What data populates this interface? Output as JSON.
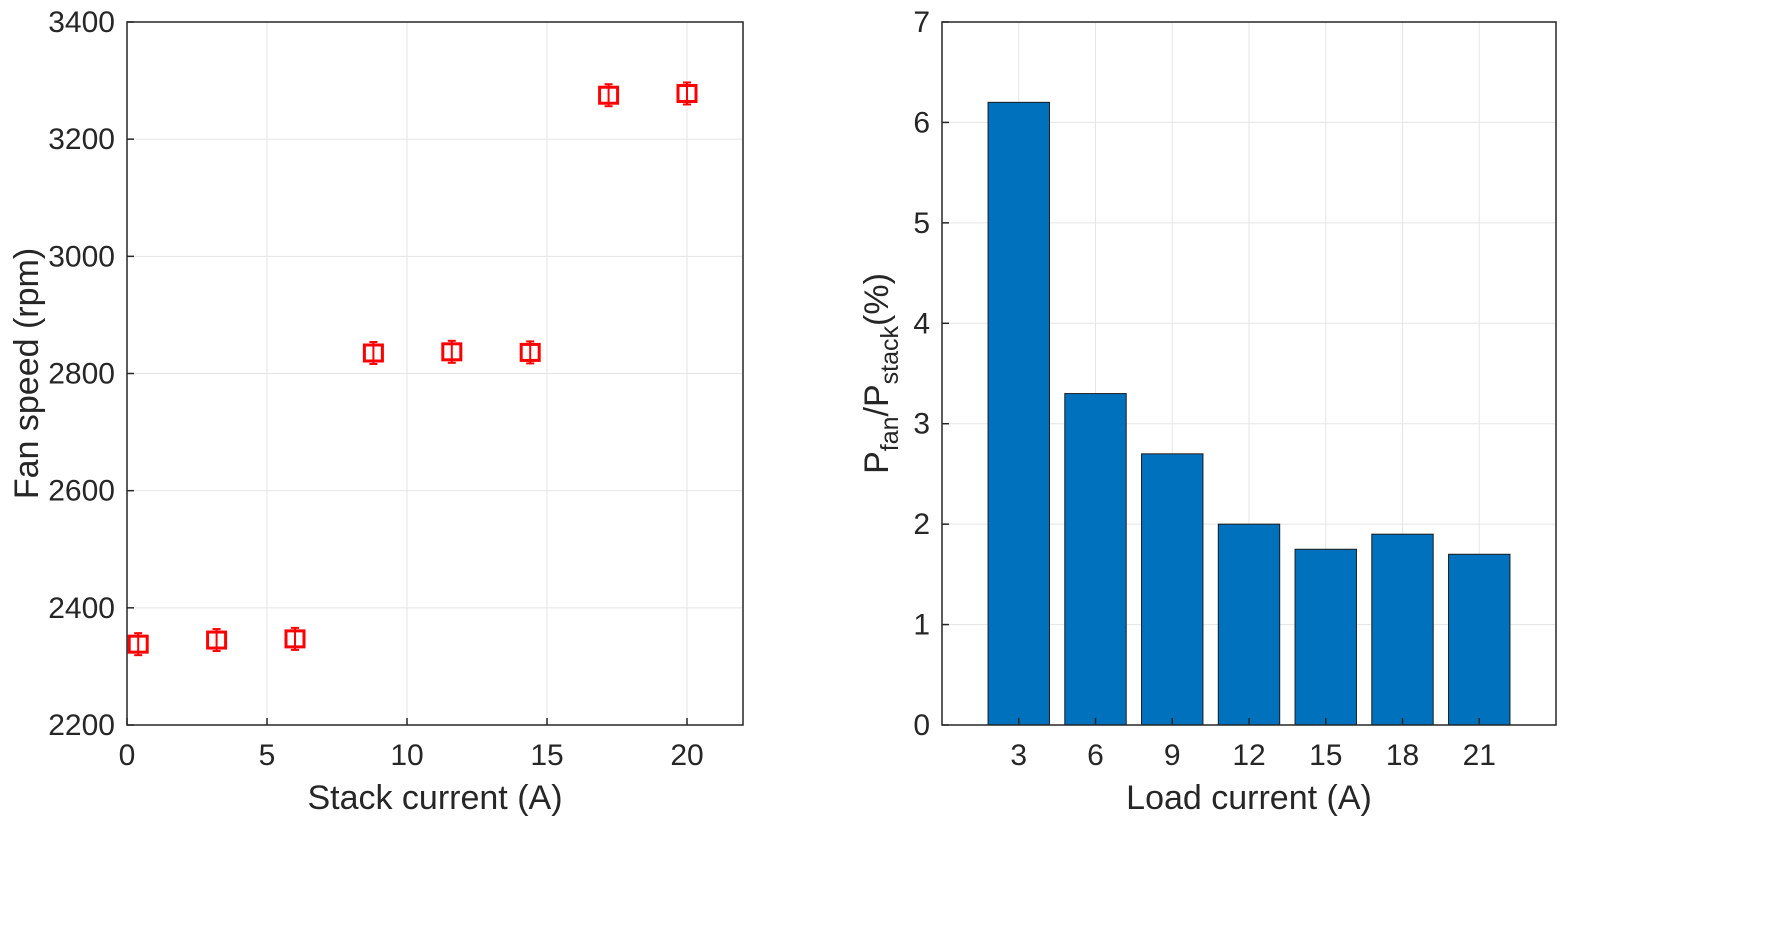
{
  "chart_data": [
    {
      "type": "scatter",
      "xlabel": "Stack current (A)",
      "ylabel": "Fan speed (rpm)",
      "xlim": [
        0,
        22
      ],
      "ylim": [
        2200,
        3400
      ],
      "xticks": [
        "0",
        "5",
        "10",
        "15",
        "20"
      ],
      "yticks": [
        "2200",
        "2400",
        "2600",
        "2800",
        "3000",
        "3200",
        "3400"
      ],
      "grid": true,
      "marker": "square with error bars",
      "color": "#ff0000",
      "points": [
        {
          "x": 0.4,
          "y": 2338
        },
        {
          "x": 3.2,
          "y": 2345
        },
        {
          "x": 6.0,
          "y": 2347
        },
        {
          "x": 8.8,
          "y": 2835
        },
        {
          "x": 11.6,
          "y": 2837
        },
        {
          "x": 14.4,
          "y": 2836
        },
        {
          "x": 17.2,
          "y": 3275
        },
        {
          "x": 20.0,
          "y": 3278
        }
      ]
    },
    {
      "type": "bar",
      "xlabel": "Load current (A)",
      "ylabel_parts": [
        "P",
        "fan",
        "/P",
        "stack",
        "(%)"
      ],
      "categories": [
        "3",
        "6",
        "9",
        "12",
        "15",
        "18",
        "21"
      ],
      "values": [
        6.2,
        3.3,
        2.7,
        2.0,
        1.75,
        1.9,
        1.7
      ],
      "ylim": [
        0,
        7
      ],
      "yticks": [
        "0",
        "1",
        "2",
        "3",
        "4",
        "5",
        "6",
        "7"
      ],
      "grid": true,
      "color": "#0072bd"
    }
  ]
}
